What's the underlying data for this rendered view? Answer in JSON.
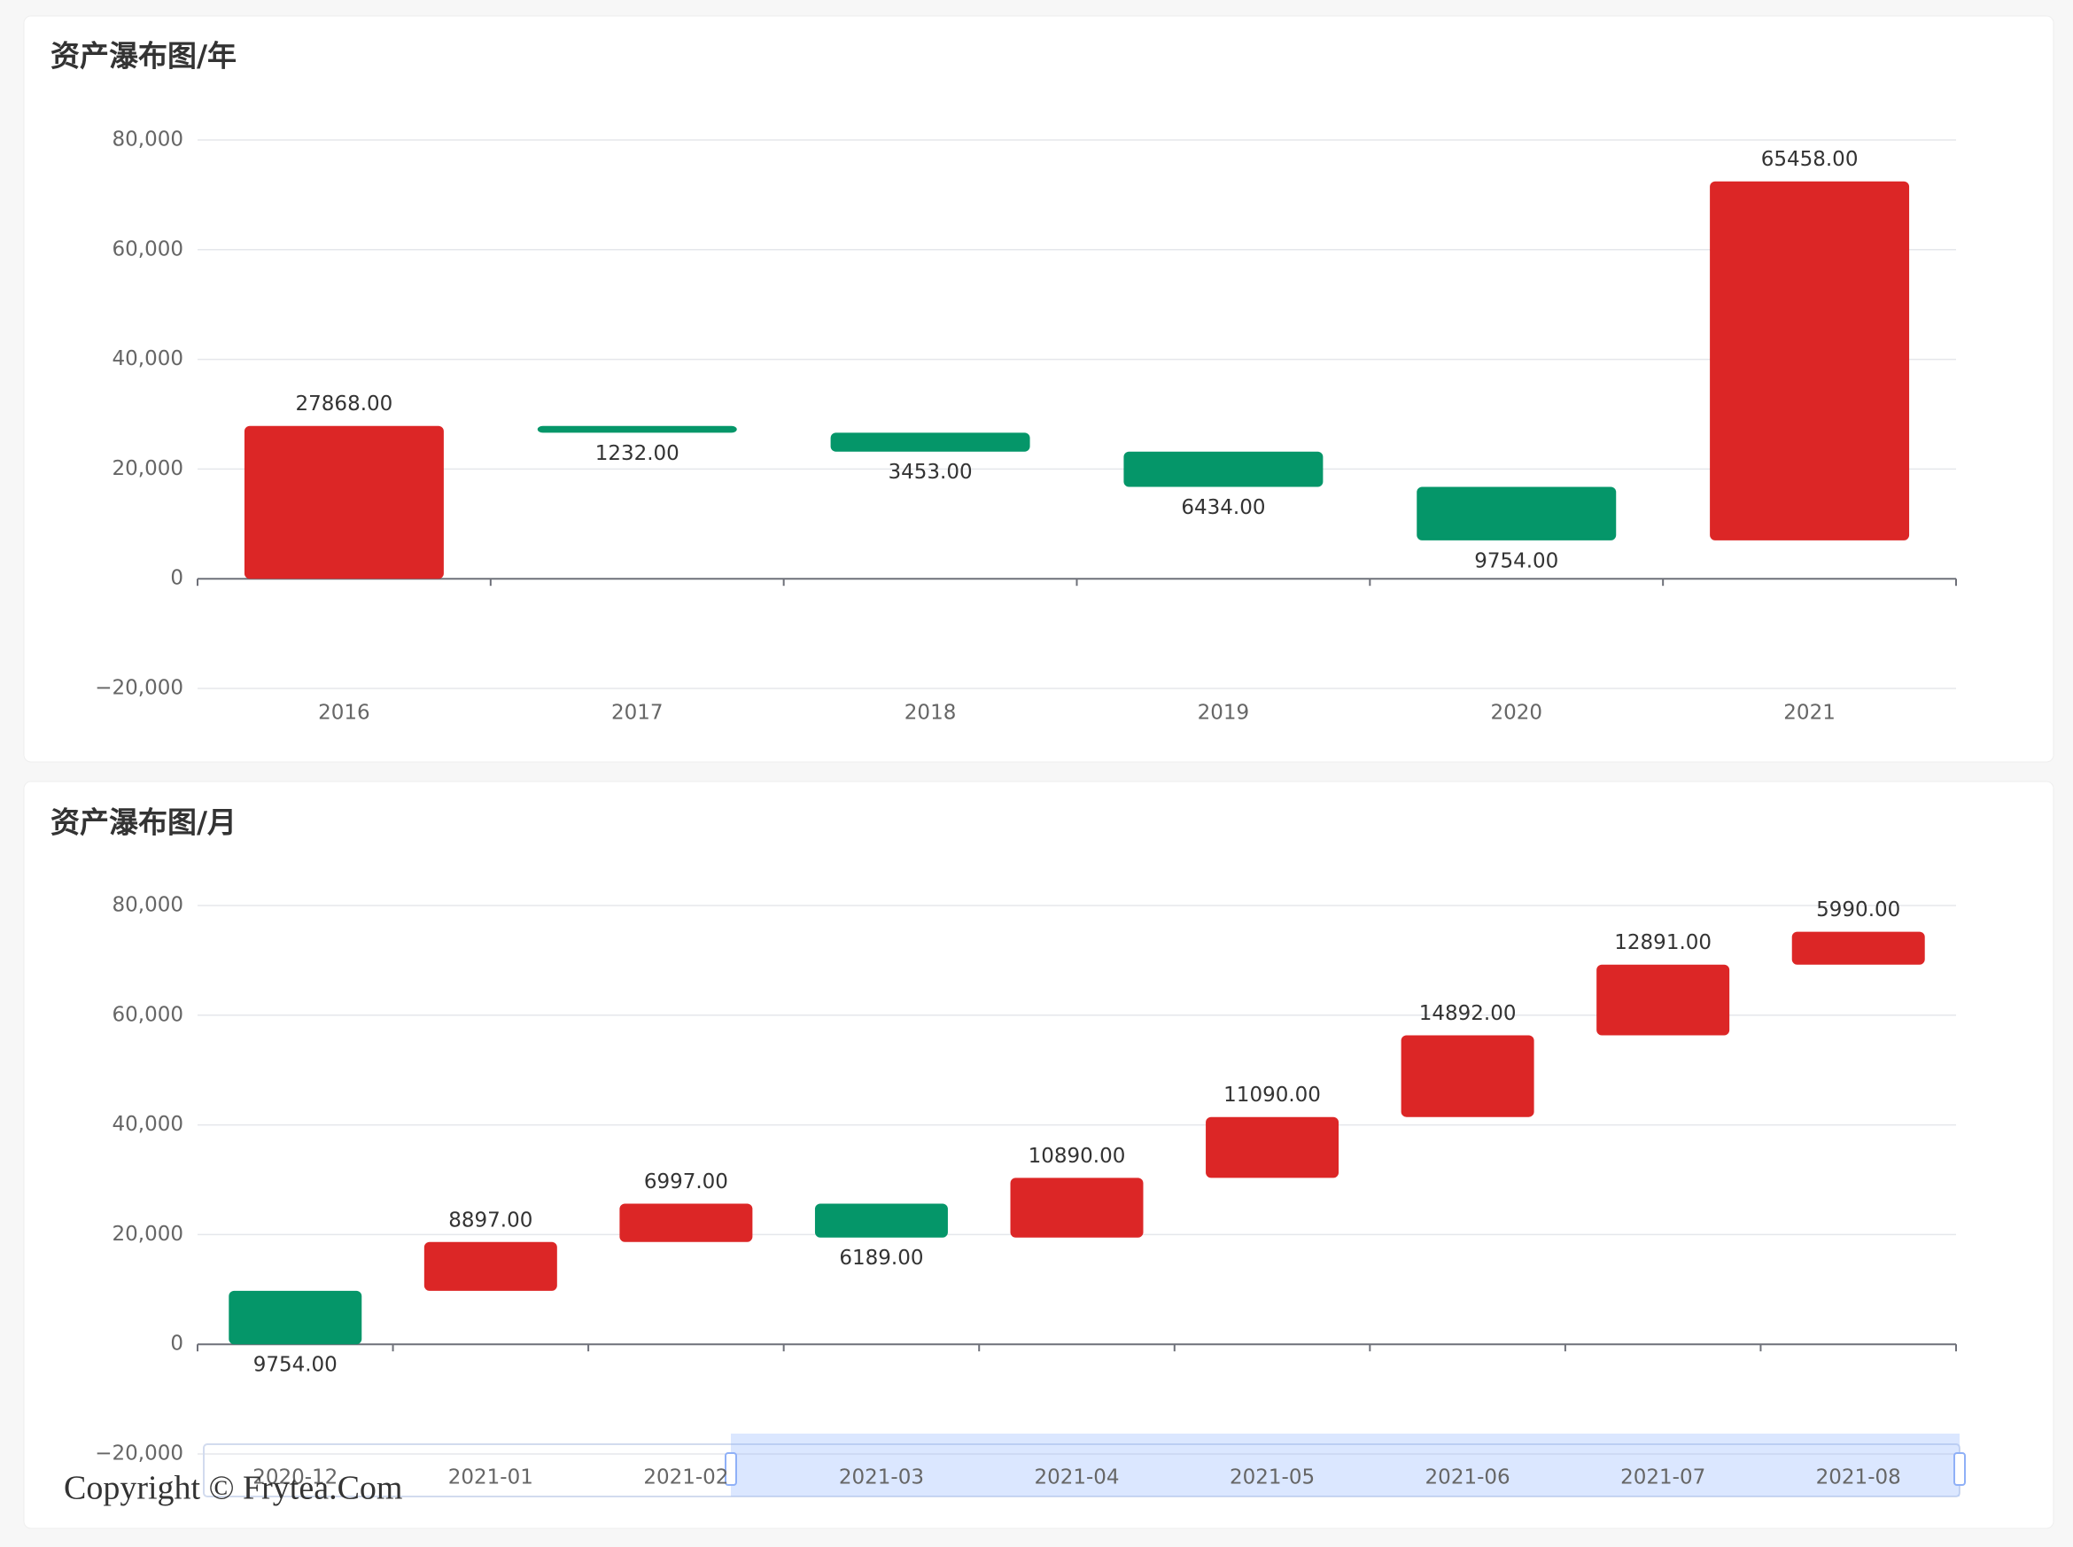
{
  "chart_data": [
    {
      "type": "waterfall",
      "title": "资产瀑布图/年",
      "categories": [
        "2016",
        "2017",
        "2018",
        "2019",
        "2020",
        "2021"
      ],
      "values": [
        27868,
        1232,
        3453,
        6434,
        9754,
        65458
      ],
      "value_labels": [
        "27868.00",
        "1232.00",
        "3453.00",
        "6434.00",
        "9754.00",
        "65458.00"
      ],
      "direction": [
        "up",
        "down",
        "down",
        "down",
        "down",
        "up"
      ],
      "up_color": "#dc2626",
      "down_color": "#059669",
      "ylim": [
        -20000,
        80000
      ],
      "yticks": [
        {
          "value": -20000,
          "label": "−20,000"
        },
        0,
        {
          "value": 20000,
          "label": "20,000"
        },
        {
          "value": 40000,
          "label": "40,000"
        },
        {
          "value": 60000,
          "label": "60,000"
        },
        {
          "value": 80000,
          "label": "80,000"
        }
      ],
      "grid": true,
      "data_zoom": false
    },
    {
      "type": "waterfall",
      "title": "资产瀑布图/月",
      "categories": [
        "2020-12",
        "2021-01",
        "2021-02",
        "2021-03",
        "2021-04",
        "2021-05",
        "2021-06",
        "2021-07",
        "2021-08"
      ],
      "values": [
        9754,
        8897,
        6997,
        6189,
        10890,
        11090,
        14892,
        12891,
        5990
      ],
      "value_labels": [
        "9754.00",
        "8897.00",
        "6997.00",
        "6189.00",
        "10890.00",
        "11090.00",
        "14892.00",
        "12891.00",
        "5990.00"
      ],
      "direction": [
        "down",
        "up",
        "up",
        "down",
        "up",
        "up",
        "up",
        "up",
        "up"
      ],
      "up_color": "#dc2626",
      "down_color": "#059669",
      "ylim": [
        -20000,
        80000
      ],
      "yticks": [
        {
          "value": -20000,
          "label": "−20,000"
        },
        0,
        {
          "value": 20000,
          "label": "20,000"
        },
        {
          "value": 40000,
          "label": "40,000"
        },
        {
          "value": 60000,
          "label": "60,000"
        },
        {
          "value": 80000,
          "label": "80,000"
        }
      ],
      "grid": true,
      "data_zoom": true
    }
  ],
  "watermark": "Copyright © Frytea.Com"
}
